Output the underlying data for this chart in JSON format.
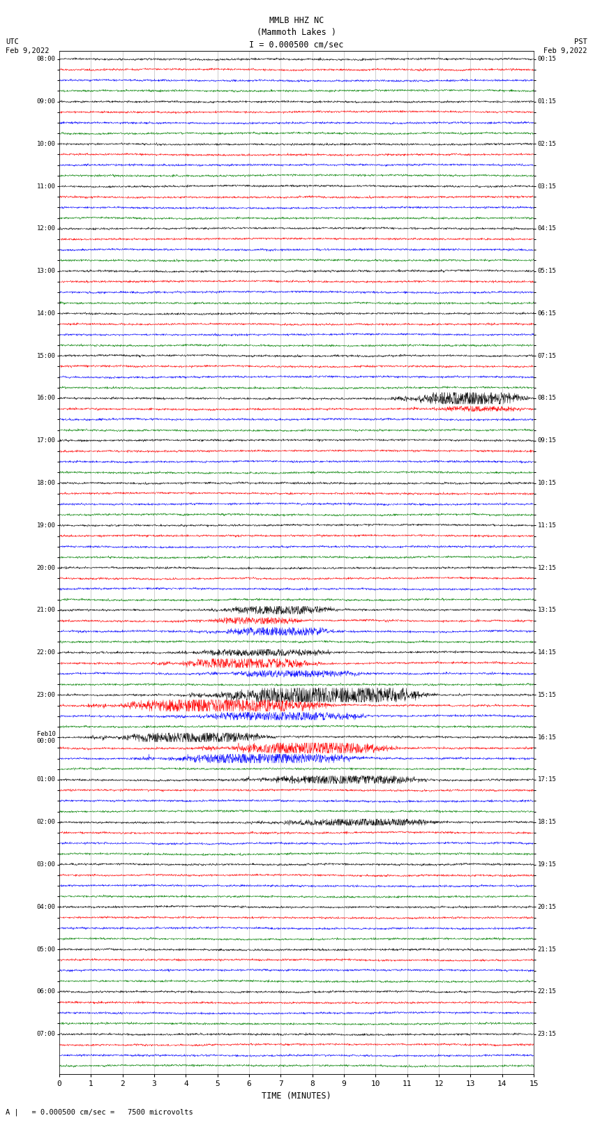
{
  "title_line1": "MMLB HHZ NC",
  "title_line2": "(Mammoth Lakes )",
  "title_line3": "I = 0.000500 cm/sec",
  "left_header1": "UTC",
  "left_header2": "Feb 9,2022",
  "right_header1": "PST",
  "right_header2": "Feb 9,2022",
  "xlabel": "TIME (MINUTES)",
  "footer": "= 0.000500 cm/sec =   7500 microvolts",
  "colors": [
    "black",
    "red",
    "blue",
    "green"
  ],
  "n_rows": 96,
  "xlim": [
    0,
    15
  ],
  "xticks": [
    0,
    1,
    2,
    3,
    4,
    5,
    6,
    7,
    8,
    9,
    10,
    11,
    12,
    13,
    14,
    15
  ],
  "background_color": "white",
  "seed": 42,
  "utc_labels": [
    "08:00",
    "",
    "",
    "",
    "09:00",
    "",
    "",
    "",
    "10:00",
    "",
    "",
    "",
    "11:00",
    "",
    "",
    "",
    "12:00",
    "",
    "",
    "",
    "13:00",
    "",
    "",
    "",
    "14:00",
    "",
    "",
    "",
    "15:00",
    "",
    "",
    "",
    "16:00",
    "",
    "",
    "",
    "17:00",
    "",
    "",
    "",
    "18:00",
    "",
    "",
    "",
    "19:00",
    "",
    "",
    "",
    "20:00",
    "",
    "",
    "",
    "21:00",
    "",
    "",
    "",
    "22:00",
    "",
    "",
    "",
    "23:00",
    "",
    "",
    "",
    "Feb10\n00:00",
    "",
    "",
    "",
    "01:00",
    "",
    "",
    "",
    "02:00",
    "",
    "",
    "",
    "03:00",
    "",
    "",
    "",
    "04:00",
    "",
    "",
    "",
    "05:00",
    "",
    "",
    "",
    "06:00",
    "",
    "",
    "",
    "07:00"
  ],
  "pst_labels": [
    "00:15",
    "",
    "",
    "",
    "01:15",
    "",
    "",
    "",
    "02:15",
    "",
    "",
    "",
    "03:15",
    "",
    "",
    "",
    "04:15",
    "",
    "",
    "",
    "05:15",
    "",
    "",
    "",
    "06:15",
    "",
    "",
    "",
    "07:15",
    "",
    "",
    "",
    "08:15",
    "",
    "",
    "",
    "09:15",
    "",
    "",
    "",
    "10:15",
    "",
    "",
    "",
    "11:15",
    "",
    "",
    "",
    "12:15",
    "",
    "",
    "",
    "13:15",
    "",
    "",
    "",
    "14:15",
    "",
    "",
    "",
    "15:15",
    "",
    "",
    "",
    "16:15",
    "",
    "",
    "",
    "17:15",
    "",
    "",
    "",
    "18:15",
    "",
    "",
    "",
    "19:15",
    "",
    "",
    "",
    "20:15",
    "",
    "",
    "",
    "21:15",
    "",
    "",
    "",
    "22:15",
    "",
    "",
    "",
    "23:15"
  ]
}
